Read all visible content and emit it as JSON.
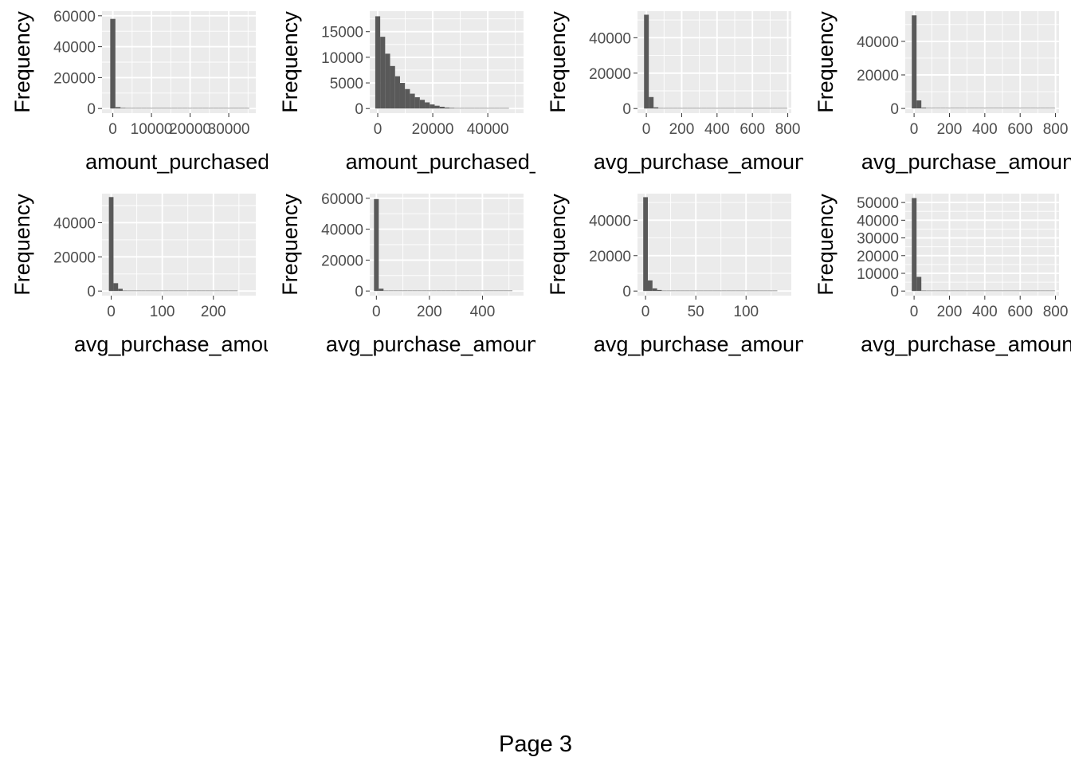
{
  "page": {
    "label": "Page 3"
  },
  "style": {
    "panel_bg": "#ebebeb",
    "grid": "#ffffff",
    "bar_fill": "#595959",
    "axis_text": "#4d4d4d",
    "title_text": "#000000"
  },
  "chart_data": [
    {
      "type": "bar",
      "xlabel": "amount_purchased_sh",
      "ylabel": "Frequency",
      "xlim": [
        -2800,
        37000
      ],
      "ylim": [
        -3000,
        63000
      ],
      "xticks": [
        0,
        10000,
        20000,
        30000
      ],
      "xtick_labels": [
        "0",
        "10000",
        "20000",
        "30000"
      ],
      "yticks": [
        0,
        20000,
        40000,
        60000
      ],
      "ytick_labels": [
        "0",
        "20000",
        "40000",
        "60000"
      ],
      "bin_start": -667,
      "bin_width": 1333,
      "values": [
        58000,
        900,
        400,
        200,
        100,
        50,
        30,
        20,
        10,
        5,
        5,
        3,
        2,
        1,
        1,
        1,
        1,
        1,
        1,
        1,
        1,
        1,
        1,
        1,
        1,
        1,
        1,
        0,
        0,
        0
      ],
      "grid": true
    },
    {
      "type": "bar",
      "xlabel": "amount_purchased_t",
      "ylabel": "Frequency",
      "xlim": [
        -2900,
        53000
      ],
      "ylim": [
        -900,
        19000
      ],
      "xticks": [
        0,
        20000,
        40000
      ],
      "xtick_labels": [
        "0",
        "20000",
        "40000"
      ],
      "yticks": [
        0,
        5000,
        10000,
        15000
      ],
      "ytick_labels": [
        "0",
        "5000",
        "10000",
        "15000"
      ],
      "bin_start": -900,
      "bin_width": 1800,
      "values": [
        18000,
        14000,
        10700,
        8300,
        6300,
        5000,
        3800,
        2900,
        2200,
        1700,
        1200,
        800,
        550,
        350,
        200,
        130,
        80,
        50,
        30,
        20,
        10,
        5,
        3,
        2,
        1,
        1,
        1,
        0,
        0,
        0
      ],
      "grid": true
    },
    {
      "type": "bar",
      "xlabel": "avg_purchase_amount_s",
      "ylabel": "Frequency",
      "xlim": [
        -50,
        820
      ],
      "ylim": [
        -2600,
        55000
      ],
      "xticks": [
        0,
        200,
        400,
        600,
        800
      ],
      "xtick_labels": [
        "0",
        "200",
        "400",
        "600",
        "800"
      ],
      "yticks": [
        0,
        20000,
        40000
      ],
      "ytick_labels": [
        "0",
        "20000",
        "40000"
      ],
      "bin_start": -13,
      "bin_width": 27,
      "values": [
        53000,
        6500,
        700,
        150,
        50,
        20,
        10,
        5,
        3,
        2,
        1,
        1,
        1,
        1,
        1,
        1,
        1,
        1,
        1,
        1,
        1,
        1,
        1,
        1,
        1,
        1,
        1,
        1,
        1,
        1
      ],
      "grid": true
    },
    {
      "type": "bar",
      "xlabel": "avg_purchase_amount_s",
      "ylabel": "Frequency",
      "xlim": [
        -50,
        820
      ],
      "ylim": [
        -2800,
        58000
      ],
      "xticks": [
        0,
        200,
        400,
        600,
        800
      ],
      "xtick_labels": [
        "0",
        "200",
        "400",
        "600",
        "800"
      ],
      "yticks": [
        0,
        20000,
        40000
      ],
      "ytick_labels": [
        "0",
        "20000",
        "40000"
      ],
      "bin_start": -13,
      "bin_width": 27,
      "values": [
        55500,
        4800,
        500,
        120,
        40,
        15,
        8,
        4,
        2,
        1,
        1,
        1,
        1,
        1,
        1,
        1,
        1,
        1,
        1,
        1,
        1,
        1,
        1,
        1,
        1,
        1,
        1,
        1,
        1,
        1
      ],
      "grid": true
    },
    {
      "type": "bar",
      "xlabel": "avg_purchase_amount_s",
      "ylabel": "Frequency",
      "xlim": [
        -18,
        283
      ],
      "ylim": [
        -2700,
        57000
      ],
      "xticks": [
        0,
        100,
        200
      ],
      "xtick_labels": [
        "0",
        "100",
        "200"
      ],
      "yticks": [
        0,
        20000,
        40000
      ],
      "ytick_labels": [
        "0",
        "20000",
        "40000"
      ],
      "bin_start": -4.5,
      "bin_width": 9,
      "values": [
        55000,
        4600,
        1300,
        300,
        90,
        30,
        12,
        5,
        3,
        2,
        1,
        1,
        1,
        1,
        1,
        1,
        1,
        1,
        1,
        1,
        1,
        1,
        1,
        1,
        1,
        1,
        1,
        1,
        0,
        0
      ],
      "grid": true
    },
    {
      "type": "bar",
      "xlabel": "avg_purchase_amount_s",
      "ylabel": "Frequency",
      "xlim": [
        -25,
        555
      ],
      "ylim": [
        -3000,
        63000
      ],
      "xticks": [
        0,
        200,
        400
      ],
      "xtick_labels": [
        "0",
        "200",
        "400"
      ],
      "yticks": [
        0,
        20000,
        40000,
        60000
      ],
      "ytick_labels": [
        "0",
        "20000",
        "40000",
        "60000"
      ],
      "bin_start": -9,
      "bin_width": 18,
      "values": [
        59500,
        1500,
        300,
        80,
        30,
        12,
        6,
        3,
        2,
        1,
        1,
        1,
        1,
        1,
        1,
        1,
        1,
        1,
        1,
        1,
        1,
        1,
        1,
        1,
        1,
        1,
        1,
        1,
        1,
        0
      ],
      "grid": true
    },
    {
      "type": "bar",
      "xlabel": "avg_purchase_amount_s",
      "ylabel": "Frequency",
      "xlim": [
        -8,
        145
      ],
      "ylim": [
        -2600,
        55000
      ],
      "xticks": [
        0,
        50,
        100
      ],
      "xtick_labels": [
        "0",
        "50",
        "100"
      ],
      "yticks": [
        0,
        20000,
        40000
      ],
      "ytick_labels": [
        "0",
        "20000",
        "40000"
      ],
      "bin_start": -2.3,
      "bin_width": 4.6,
      "values": [
        53000,
        6000,
        1500,
        600,
        200,
        80,
        40,
        20,
        10,
        5,
        3,
        2,
        1,
        1,
        1,
        1,
        1,
        1,
        1,
        1,
        1,
        1,
        1,
        1,
        1,
        1,
        1,
        1,
        1,
        0
      ],
      "grid": true
    },
    {
      "type": "bar",
      "xlabel": "avg_purchase_amount_a",
      "ylabel": "Frequency",
      "xlim": [
        -50,
        820
      ],
      "ylim": [
        -2600,
        55000
      ],
      "xticks": [
        0,
        200,
        400,
        600,
        800
      ],
      "xtick_labels": [
        "0",
        "200",
        "400",
        "600",
        "800"
      ],
      "yticks": [
        0,
        10000,
        20000,
        30000,
        40000,
        50000
      ],
      "ytick_labels": [
        "0",
        "10000",
        "20000",
        "30000",
        "40000",
        "50000"
      ],
      "bin_start": -13,
      "bin_width": 27,
      "values": [
        52500,
        8000,
        300,
        60,
        20,
        8,
        4,
        2,
        1,
        1,
        1,
        1,
        1,
        1,
        1,
        1,
        1,
        1,
        1,
        1,
        1,
        1,
        1,
        1,
        1,
        1,
        1,
        1,
        1,
        1
      ],
      "grid": true
    }
  ]
}
